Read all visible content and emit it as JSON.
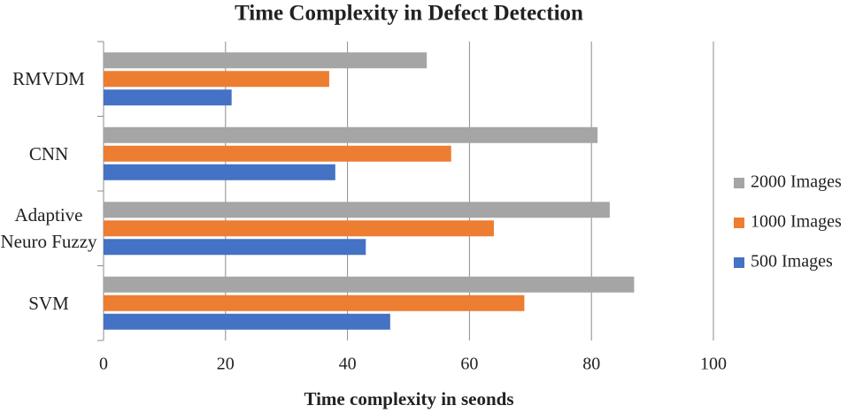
{
  "chart_data": {
    "type": "hbar",
    "title": "Time Complexity in Defect Detection",
    "x_label": "Time complexity in seonds",
    "categories": [
      "RMVDM",
      "CNN",
      "Adaptive Neuro Fuzzy",
      "SVM"
    ],
    "series": [
      {
        "name": "2000 Images",
        "color": "#a5a5a5",
        "values": [
          53,
          81,
          83,
          87
        ]
      },
      {
        "name": "1000 Images",
        "color": "#ed7d31",
        "values": [
          37,
          57,
          64,
          69
        ]
      },
      {
        "name": "500 Images",
        "color": "#4472c4",
        "values": [
          21,
          38,
          43,
          47
        ]
      }
    ],
    "xlim": [
      0,
      100
    ],
    "xticks": [
      0,
      20,
      40,
      60,
      80,
      100
    ],
    "grid": true,
    "legend": "right"
  }
}
